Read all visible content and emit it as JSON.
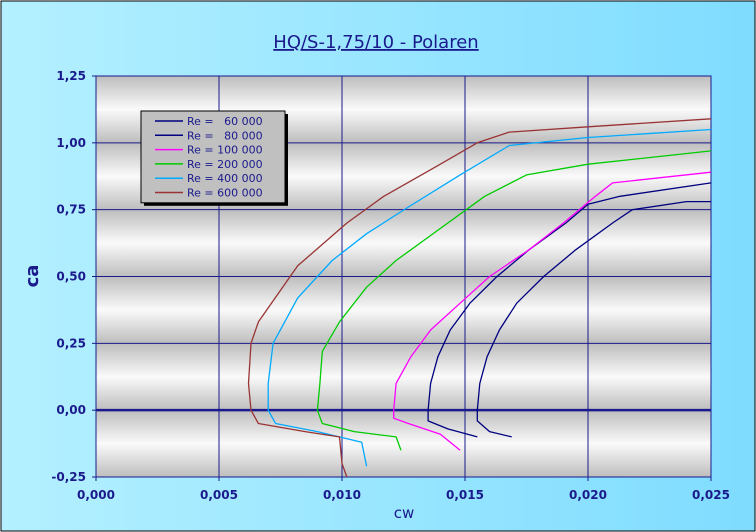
{
  "chart_data": {
    "type": "line",
    "title": "HQ/S-1,75/10 - Polaren",
    "xlabel": "cw",
    "ylabel": "ca",
    "xlim": [
      0.0,
      0.025
    ],
    "ylim": [
      -0.25,
      1.25
    ],
    "x_ticks": [
      "0,000",
      "0,005",
      "0,010",
      "0,015",
      "0,020",
      "0,025"
    ],
    "y_ticks": [
      "1,25",
      "1,00",
      "0,75",
      "0,50",
      "0,25",
      "0,00",
      "-0,25"
    ],
    "grid": true,
    "legend_position": "top-left",
    "colors": {
      "frame_background": "#9be7ff",
      "plot_band_dark": "#bfbfbf",
      "plot_band_light": "#f8f8f8",
      "grid": "#1a1a8c",
      "axis_text": "#1a1a8c",
      "legend_background": "#c0c0c0"
    },
    "series": [
      {
        "name": "Re =   60 000",
        "color": "#000080",
        "points": [
          [
            0.0169,
            -0.1
          ],
          [
            0.016,
            -0.08
          ],
          [
            0.0155,
            -0.04
          ],
          [
            0.0155,
            0.0
          ],
          [
            0.0156,
            0.1
          ],
          [
            0.0159,
            0.2
          ],
          [
            0.0164,
            0.3
          ],
          [
            0.0171,
            0.4
          ],
          [
            0.0182,
            0.5
          ],
          [
            0.0195,
            0.6
          ],
          [
            0.021,
            0.7
          ],
          [
            0.0218,
            0.75
          ],
          [
            0.024,
            0.78
          ],
          [
            0.025,
            0.78
          ]
        ]
      },
      {
        "name": "Re =   80 000",
        "color": "#000080",
        "points": [
          [
            0.0155,
            -0.1
          ],
          [
            0.0143,
            -0.07
          ],
          [
            0.0135,
            -0.04
          ],
          [
            0.0135,
            0.0
          ],
          [
            0.0136,
            0.1
          ],
          [
            0.0139,
            0.2
          ],
          [
            0.0144,
            0.3
          ],
          [
            0.0152,
            0.4
          ],
          [
            0.0163,
            0.5
          ],
          [
            0.0176,
            0.6
          ],
          [
            0.0191,
            0.7
          ],
          [
            0.02,
            0.77
          ],
          [
            0.0213,
            0.8
          ],
          [
            0.025,
            0.85
          ]
        ]
      },
      {
        "name": "Re = 100 000",
        "color": "#ff00ff",
        "points": [
          [
            0.0148,
            -0.15
          ],
          [
            0.014,
            -0.09
          ],
          [
            0.0127,
            -0.05
          ],
          [
            0.0121,
            -0.03
          ],
          [
            0.0121,
            0.0
          ],
          [
            0.0122,
            0.1
          ],
          [
            0.0128,
            0.2
          ],
          [
            0.0136,
            0.3
          ],
          [
            0.0148,
            0.4
          ],
          [
            0.016,
            0.5
          ],
          [
            0.0176,
            0.6
          ],
          [
            0.019,
            0.7
          ],
          [
            0.0203,
            0.8
          ],
          [
            0.021,
            0.85
          ],
          [
            0.025,
            0.89
          ]
        ]
      },
      {
        "name": "Re = 200 000",
        "color": "#00cc00",
        "points": [
          [
            0.0124,
            -0.15
          ],
          [
            0.0122,
            -0.1
          ],
          [
            0.0105,
            -0.08
          ],
          [
            0.0092,
            -0.05
          ],
          [
            0.009,
            0.0
          ],
          [
            0.0091,
            0.1
          ],
          [
            0.0092,
            0.22
          ],
          [
            0.0099,
            0.33
          ],
          [
            0.011,
            0.46
          ],
          [
            0.0122,
            0.56
          ],
          [
            0.014,
            0.68
          ],
          [
            0.0158,
            0.8
          ],
          [
            0.0175,
            0.88
          ],
          [
            0.02,
            0.92
          ],
          [
            0.025,
            0.97
          ]
        ]
      },
      {
        "name": "Re = 400 000",
        "color": "#00aaff",
        "points": [
          [
            0.011,
            -0.21
          ],
          [
            0.0108,
            -0.12
          ],
          [
            0.009,
            -0.08
          ],
          [
            0.0073,
            -0.05
          ],
          [
            0.007,
            0.0
          ],
          [
            0.007,
            0.1
          ],
          [
            0.0072,
            0.25
          ],
          [
            0.0082,
            0.42
          ],
          [
            0.0096,
            0.56
          ],
          [
            0.011,
            0.66
          ],
          [
            0.0127,
            0.76
          ],
          [
            0.0148,
            0.88
          ],
          [
            0.0168,
            0.99
          ],
          [
            0.02,
            1.02
          ],
          [
            0.025,
            1.05
          ]
        ]
      },
      {
        "name": "Re = 600 000",
        "color": "#993333",
        "points": [
          [
            0.0102,
            -0.25
          ],
          [
            0.01,
            -0.2
          ],
          [
            0.0099,
            -0.1
          ],
          [
            0.0085,
            -0.08
          ],
          [
            0.0066,
            -0.05
          ],
          [
            0.0063,
            0.0
          ],
          [
            0.0062,
            0.1
          ],
          [
            0.0063,
            0.25
          ],
          [
            0.0066,
            0.33
          ],
          [
            0.0082,
            0.54
          ],
          [
            0.0102,
            0.7
          ],
          [
            0.0117,
            0.8
          ],
          [
            0.0138,
            0.91
          ],
          [
            0.0155,
            1.0
          ],
          [
            0.0168,
            1.04
          ],
          [
            0.02,
            1.06
          ],
          [
            0.025,
            1.09
          ]
        ]
      }
    ]
  }
}
